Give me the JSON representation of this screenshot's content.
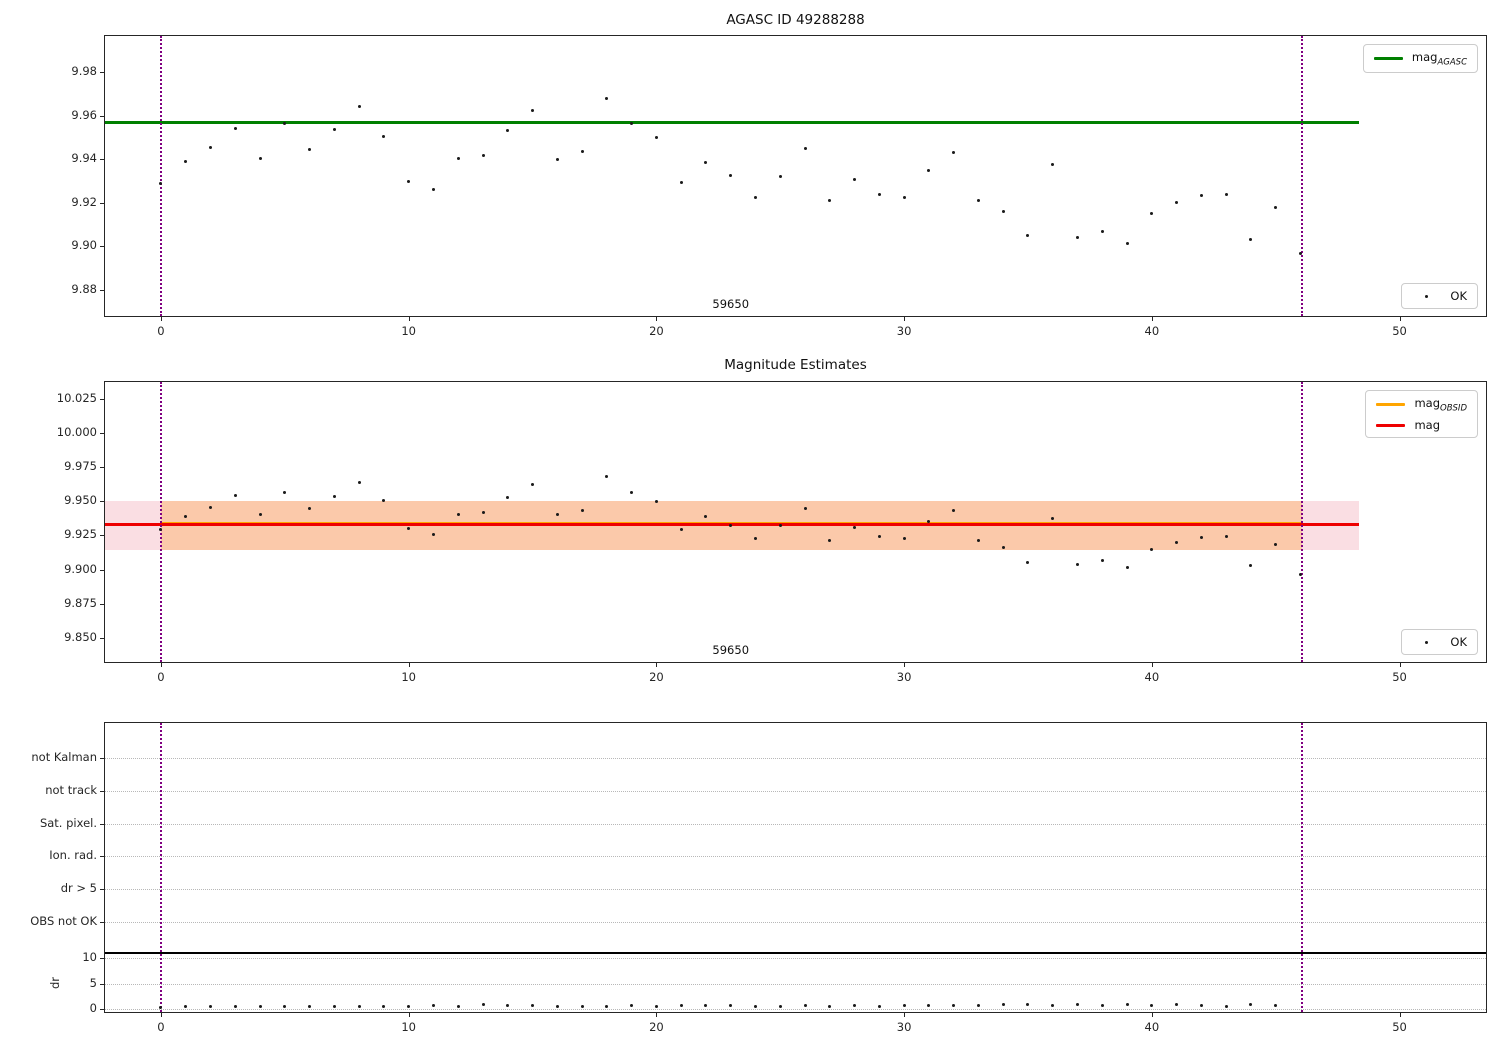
{
  "figure": {
    "background": "#ffffff",
    "obsid_annotation": "59650"
  },
  "colors": {
    "agasc_line": "#008000",
    "mag_line": "#ee0000",
    "obsid_line": "#ffa500",
    "vline": "#800080",
    "marker": "#1a1a1a",
    "band_obsid": "rgba(255,140,0,0.25)",
    "band_mag": "rgba(220,20,60,0.14)",
    "flag_limit_line": "#000000"
  },
  "chart_data": [
    {
      "type": "scatter",
      "title": "AGASC ID 49288288",
      "xlabel": "",
      "ylabel": "",
      "xlim": [
        -2.26,
        53.49
      ],
      "ylim": [
        9.868,
        9.9966
      ],
      "xticks": [
        0,
        10,
        20,
        30,
        40,
        50
      ],
      "xticklabels": [
        "0",
        "10",
        "20",
        "30",
        "40",
        "50"
      ],
      "yticks": [
        9.88,
        9.9,
        9.92,
        9.94,
        9.96,
        9.98
      ],
      "yticklabels": [
        "9.88",
        "9.90",
        "9.92",
        "9.94",
        "9.96",
        "9.98"
      ],
      "grid": false,
      "legend_position": "upper right",
      "legend": [
        {
          "text": "mag",
          "sub": "AGASC",
          "color_key": "agasc_line"
        }
      ],
      "marker_legend": {
        "text": "OK",
        "position": "lower right"
      },
      "hlines": [
        {
          "name": "mag_AGASC",
          "value": 9.957,
          "x_start": -2.26,
          "x_end": 48.35,
          "color_key": "agasc_line"
        }
      ],
      "vlines": [
        {
          "x": 0,
          "color_key": "vline"
        },
        {
          "x": 46.07,
          "color_key": "vline"
        }
      ],
      "annotation": {
        "text": "59650",
        "x": 23.0
      },
      "series": [
        {
          "name": "OK",
          "x": [
            0,
            1,
            2,
            3,
            4,
            5,
            6,
            7,
            8,
            9,
            10,
            11,
            12,
            13,
            14,
            15,
            16,
            17,
            18,
            19,
            20,
            21,
            22,
            23,
            24,
            25,
            26,
            27,
            28,
            29,
            30,
            31,
            32,
            33,
            34,
            35,
            36,
            37,
            38,
            39,
            40,
            41,
            42,
            43,
            44,
            45,
            46
          ],
          "y": [
            9.929,
            9.939,
            9.9455,
            9.954,
            9.9405,
            9.9565,
            9.9445,
            9.9535,
            9.964,
            9.9505,
            9.93,
            9.926,
            9.9405,
            9.9415,
            9.953,
            9.9625,
            9.94,
            9.9435,
            9.968,
            9.9565,
            9.95,
            9.9295,
            9.9385,
            9.9325,
            9.9225,
            9.932,
            9.945,
            9.921,
            9.9305,
            9.924,
            9.9225,
            9.935,
            9.943,
            9.921,
            9.916,
            9.905,
            9.9375,
            9.904,
            9.907,
            9.9015,
            9.915,
            9.92,
            9.9235,
            9.924,
            9.903,
            9.918,
            9.8965
          ]
        }
      ]
    },
    {
      "type": "scatter",
      "title": "Magnitude Estimates",
      "xlabel": "",
      "ylabel": "",
      "xlim": [
        -2.26,
        53.49
      ],
      "ylim": [
        9.8324,
        10.0372
      ],
      "xticks": [
        0,
        10,
        20,
        30,
        40,
        50
      ],
      "xticklabels": [
        "0",
        "10",
        "20",
        "30",
        "40",
        "50"
      ],
      "yticks": [
        9.85,
        9.875,
        9.9,
        9.925,
        9.95,
        9.975,
        10.0,
        10.025
      ],
      "yticklabels": [
        "9.850",
        "9.875",
        "9.900",
        "9.925",
        "9.950",
        "9.975",
        "10.000",
        "10.025"
      ],
      "grid": false,
      "legend_position": "upper right",
      "legend": [
        {
          "text": "mag",
          "sub": "OBSID",
          "color_key": "obsid_line"
        },
        {
          "text": "mag",
          "sub": "",
          "color_key": "mag_line"
        }
      ],
      "marker_legend": {
        "text": "OK",
        "position": "lower right"
      },
      "hlines": [
        {
          "name": "mag_OBSID",
          "value": 9.933,
          "x_start": 0,
          "x_end": 46.07,
          "color_key": "obsid_line"
        },
        {
          "name": "mag",
          "value": 9.933,
          "x_start": -2.26,
          "x_end": 48.35,
          "color_key": "mag_line"
        }
      ],
      "bands": [
        {
          "name": "mag_err_band",
          "y0": 9.9144,
          "y1": 9.95,
          "x_start": -2.26,
          "x_end": 48.35,
          "color_key": "band_mag"
        },
        {
          "name": "obsid_err_band",
          "y0": 9.9144,
          "y1": 9.95,
          "x_start": 0,
          "x_end": 46.07,
          "color_key": "band_obsid"
        }
      ],
      "vlines": [
        {
          "x": 0,
          "color_key": "vline"
        },
        {
          "x": 46.07,
          "color_key": "vline"
        }
      ],
      "annotation": {
        "text": "59650",
        "x": 23.0
      },
      "series": [
        {
          "name": "OK",
          "x": [
            0,
            1,
            2,
            3,
            4,
            5,
            6,
            7,
            8,
            9,
            10,
            11,
            12,
            13,
            14,
            15,
            16,
            17,
            18,
            19,
            20,
            21,
            22,
            23,
            24,
            25,
            26,
            27,
            28,
            29,
            30,
            31,
            32,
            33,
            34,
            35,
            36,
            37,
            38,
            39,
            40,
            41,
            42,
            43,
            44,
            45,
            46
          ],
          "y": [
            9.929,
            9.939,
            9.9455,
            9.954,
            9.9405,
            9.9565,
            9.9445,
            9.9535,
            9.964,
            9.9505,
            9.93,
            9.926,
            9.9405,
            9.9415,
            9.953,
            9.9625,
            9.94,
            9.9435,
            9.968,
            9.9565,
            9.95,
            9.9295,
            9.9385,
            9.9325,
            9.9225,
            9.932,
            9.945,
            9.921,
            9.9305,
            9.924,
            9.9225,
            9.935,
            9.943,
            9.921,
            9.916,
            9.905,
            9.9375,
            9.904,
            9.907,
            9.9015,
            9.915,
            9.92,
            9.9235,
            9.924,
            9.903,
            9.918,
            9.8965
          ]
        }
      ]
    },
    {
      "type": "scatter",
      "title": "",
      "xlabel": "",
      "dr_ylabel": "dr",
      "xlim": [
        -2.26,
        53.49
      ],
      "xticks": [
        0,
        10,
        20,
        30,
        40,
        50
      ],
      "xticklabels": [
        "0",
        "10",
        "20",
        "30",
        "40",
        "50"
      ],
      "flag_categories": [
        "not Kalman",
        "not track",
        "Sat. pixel.",
        "Ion. rad.",
        "dr > 5",
        "OBS not OK"
      ],
      "flag_events": [],
      "dr_ticks": [
        0,
        5,
        10
      ],
      "dr_ticklabels": [
        "0",
        "5",
        "10"
      ],
      "dr_limit_line": 11.0,
      "grid": true,
      "vlines": [
        {
          "x": 0,
          "color_key": "vline"
        },
        {
          "x": 46.07,
          "color_key": "vline"
        }
      ],
      "series": [
        {
          "name": "dr",
          "x": [
            0,
            1,
            2,
            3,
            4,
            5,
            6,
            7,
            8,
            9,
            10,
            11,
            12,
            13,
            14,
            15,
            16,
            17,
            18,
            19,
            20,
            21,
            22,
            23,
            24,
            25,
            26,
            27,
            28,
            29,
            30,
            31,
            32,
            33,
            34,
            35,
            36,
            37,
            38,
            39,
            40,
            41,
            42,
            43,
            44,
            45
          ],
          "y": [
            0.35,
            0.4,
            0.4,
            0.45,
            0.5,
            0.45,
            0.55,
            0.45,
            0.55,
            0.5,
            0.55,
            0.6,
            0.5,
            0.9,
            0.6,
            0.6,
            0.5,
            0.55,
            0.5,
            0.6,
            0.55,
            0.7,
            0.65,
            0.6,
            0.5,
            0.55,
            0.6,
            0.55,
            0.6,
            0.55,
            0.6,
            0.7,
            0.7,
            0.6,
            0.85,
            0.8,
            0.75,
            0.8,
            0.75,
            0.8,
            0.7,
            0.8,
            0.75,
            0.55,
            0.8,
            0.75
          ]
        }
      ]
    }
  ]
}
